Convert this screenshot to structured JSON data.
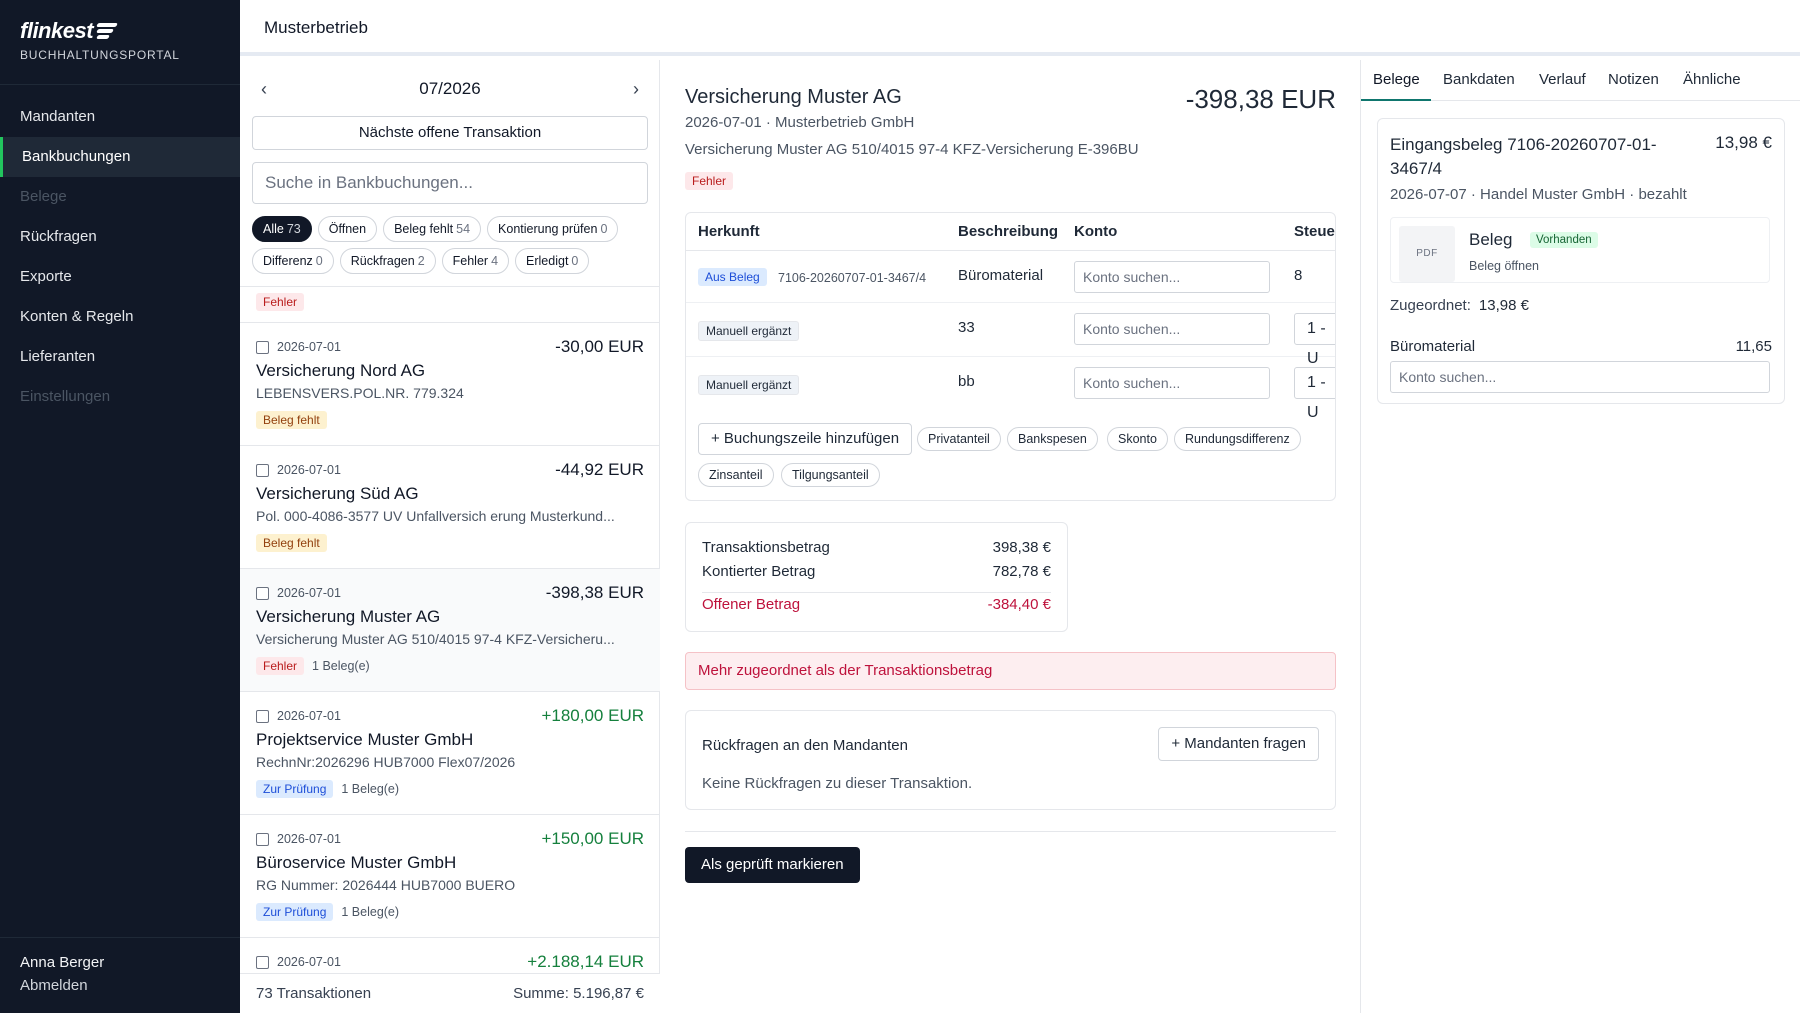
{
  "brand": {
    "name": "flinkest",
    "subtitle": "BUCHHALTUNGSPORTAL"
  },
  "sidebar": {
    "items": [
      {
        "label": "Mandanten",
        "state": "normal"
      },
      {
        "label": "Bankbuchungen",
        "state": "active"
      },
      {
        "label": "Belege",
        "state": "disabled"
      },
      {
        "label": "Rückfragen",
        "state": "normal"
      },
      {
        "label": "Exporte",
        "state": "normal"
      },
      {
        "label": "Konten & Regeln",
        "state": "normal"
      },
      {
        "label": "Lieferanten",
        "state": "normal"
      },
      {
        "label": "Einstellungen",
        "state": "disabled"
      }
    ],
    "user": "Anna Berger",
    "logout": "Abmelden"
  },
  "topbar": {
    "title": "Musterbetrieb"
  },
  "list": {
    "prev_icon": "‹",
    "next_icon": "›",
    "month": "07/2026",
    "next_open_label": "Nächste offene Transaktion",
    "search_placeholder": "Suche in Bankbuchungen...",
    "filters": [
      {
        "label": "Alle",
        "count": "73",
        "active": true
      },
      {
        "label": "Öffnen",
        "count": "",
        "active": false
      },
      {
        "label": "Beleg fehlt",
        "count": "54",
        "active": false
      },
      {
        "label": "Kontierung prüfen",
        "count": "0",
        "active": false
      },
      {
        "label": "Differenz",
        "count": "0",
        "active": false
      },
      {
        "label": "Rückfragen",
        "count": "2",
        "active": false
      },
      {
        "label": "Fehler",
        "count": "4",
        "active": false
      },
      {
        "label": "Erledigt",
        "count": "0",
        "active": false
      }
    ],
    "stub_tag": "Fehler",
    "transactions": [
      {
        "date": "2026-07-01",
        "amount": "-30,00 EUR",
        "positive": false,
        "name": "Versicherung Nord AG",
        "desc": "LEBENSVERS.POL.NR. 779.324",
        "tag": "Beleg fehlt",
        "tag_color": "yellow",
        "belege": ""
      },
      {
        "date": "2026-07-01",
        "amount": "-44,92 EUR",
        "positive": false,
        "name": "Versicherung Süd AG",
        "desc": "Pol. 000-4086-3577 UV Unfallversich erung Musterkund...",
        "tag": "Beleg fehlt",
        "tag_color": "yellow",
        "belege": ""
      },
      {
        "date": "2026-07-01",
        "amount": "-398,38 EUR",
        "positive": false,
        "name": "Versicherung Muster AG",
        "desc": "Versicherung Muster AG 510/4015 97-4 KFZ-Versicheru...",
        "tag": "Fehler",
        "tag_color": "red",
        "belege": "1 Beleg(e)",
        "selected": true
      },
      {
        "date": "2026-07-01",
        "amount": "+180,00 EUR",
        "positive": true,
        "name": "Projektservice Muster GmbH",
        "desc": "RechnNr:2026296 HUB7000 Flex07/2026",
        "tag": "Zur Prüfung",
        "tag_color": "blue",
        "belege": "1 Beleg(e)"
      },
      {
        "date": "2026-07-01",
        "amount": "+150,00 EUR",
        "positive": true,
        "name": "Büroservice Muster GmbH",
        "desc": "RG Nummer: 2026444 HUB7000 BUERO",
        "tag": "Zur Prüfung",
        "tag_color": "blue",
        "belege": "1 Beleg(e)"
      },
      {
        "date": "2026-07-01",
        "amount": "+2.188,14 EUR",
        "positive": true,
        "name": "",
        "desc": "",
        "tag": "",
        "tag_color": "",
        "belege": ""
      }
    ],
    "footer_count": "73 Transaktionen",
    "footer_sum": "Summe: 5.196,87 €"
  },
  "detail": {
    "title": "Versicherung Muster AG",
    "amount": "-398,38 EUR",
    "subtitle": "2026-07-01 · Musterbetrieb GmbH",
    "memo": "Versicherung Muster AG 510/4015 97-4 KFZ-Versicherung E-396BU",
    "status": "Fehler",
    "table": {
      "headers": {
        "herkunft": "Herkunft",
        "beschreibung": "Beschreibung",
        "konto": "Konto",
        "steuer": "Steuer"
      },
      "rows": [
        {
          "origin": "Aus Beleg",
          "ref": "7106-20260707-01-3467/4",
          "desc": "Büromaterial",
          "konto_placeholder": "Konto suchen...",
          "steuer": "8"
        },
        {
          "origin": "Manuell ergänzt",
          "ref": "",
          "desc": "33",
          "konto_placeholder": "Konto suchen...",
          "steuer": "1 - U"
        },
        {
          "origin": "Manuell ergänzt",
          "ref": "",
          "desc": "bb",
          "konto_placeholder": "Konto suchen...",
          "steuer": "1 - U"
        }
      ],
      "add_line_label": "+ Buchungszeile hinzufügen",
      "quick_add": [
        "Privatanteil",
        "Bankspesen",
        "Skonto",
        "Rundungsdifferenz",
        "Zinsanteil",
        "Tilgungsanteil"
      ]
    },
    "summary": {
      "transaktion_label": "Transaktionsbetrag",
      "transaktion_value": "398,38 €",
      "kontiert_label": "Kontierter Betrag",
      "kontiert_value": "782,78 €",
      "offen_label": "Offener Betrag",
      "offen_value": "-384,40 €"
    },
    "error_message": "Mehr zugeordnet als der Transaktionsbetrag",
    "rueckfragen": {
      "title": "Rückfragen an den Mandanten",
      "button": "+ Mandanten fragen",
      "empty": "Keine Rückfragen zu dieser Transaktion."
    },
    "mark_reviewed": "Als geprüft markieren"
  },
  "right": {
    "tabs": [
      "Belege",
      "Bankdaten",
      "Verlauf",
      "Notizen",
      "Ähnliche"
    ],
    "active_tab": "Belege",
    "beleg": {
      "title": "Eingangsbeleg 7106-20260707-01-3467/4",
      "amount": "13,98 €",
      "subtitle": "2026-07-07 · Handel Muster GmbH · bezahlt",
      "pdf_label": "PDF",
      "doc_name": "Beleg",
      "doc_badge": "Vorhanden",
      "doc_open": "Beleg öffnen",
      "zugeordnet_label": "Zugeordnet:",
      "zugeordnet_value": "13,98 €",
      "position_label": "Büromaterial",
      "position_value": "11,65",
      "konto_placeholder": "Konto suchen..."
    }
  },
  "colors": {
    "sidebar_bg": "#111827",
    "accent": "#22c55e",
    "positive": "#15803d",
    "error": "#be123c",
    "tab_accent": "#0f766e"
  }
}
